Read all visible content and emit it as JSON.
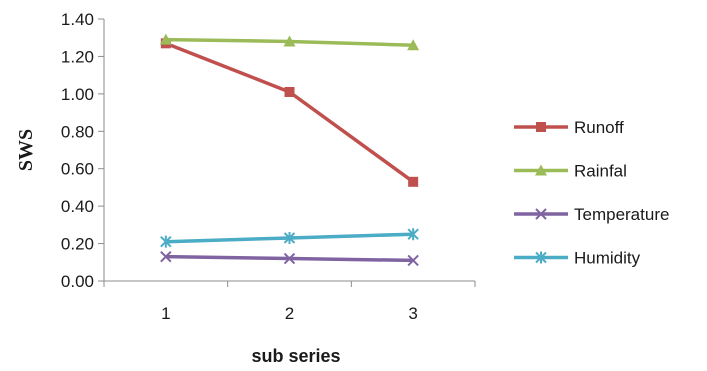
{
  "chart_data": {
    "type": "line",
    "title": "",
    "xlabel": "sub series",
    "ylabel": "SWS",
    "categories": [
      "1",
      "2",
      "3"
    ],
    "ylim": [
      0,
      1.4
    ],
    "ytick_step": 0.2,
    "yticks": [
      "0.00",
      "0.20",
      "0.40",
      "0.60",
      "0.80",
      "1.00",
      "1.20",
      "1.40"
    ],
    "grid": false,
    "legend_position": "right",
    "series": [
      {
        "name": "Runoff",
        "values": [
          1.27,
          1.01,
          0.53
        ],
        "color": "#c0504d",
        "marker": "square"
      },
      {
        "name": "Rainfal",
        "values": [
          1.29,
          1.28,
          1.26
        ],
        "color": "#9bbb59",
        "marker": "triangle"
      },
      {
        "name": "Temperature",
        "values": [
          0.13,
          0.12,
          0.11
        ],
        "color": "#8064a2",
        "marker": "x"
      },
      {
        "name": "Humidity",
        "values": [
          0.21,
          0.23,
          0.25
        ],
        "color": "#4bacc6",
        "marker": "star"
      }
    ]
  }
}
